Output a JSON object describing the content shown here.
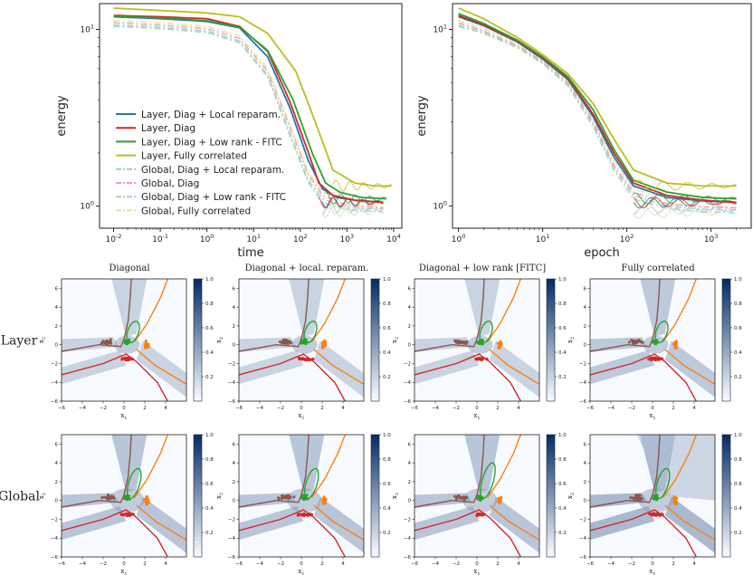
{
  "chart_data": [
    {
      "type": "line",
      "name": "energy-vs-time",
      "xlabel": "time",
      "ylabel": "energy",
      "xscale": "log",
      "yscale": "log",
      "xlim": [
        0.005,
        15000
      ],
      "ylim": [
        0.75,
        14
      ],
      "xticks": [
        {
          "v": 0.01,
          "base": "10",
          "exp": "-2"
        },
        {
          "v": 0.1,
          "base": "10",
          "exp": "-1"
        },
        {
          "v": 1,
          "base": "10",
          "exp": "0"
        },
        {
          "v": 10,
          "base": "10",
          "exp": "1"
        },
        {
          "v": 100,
          "base": "10",
          "exp": "2"
        },
        {
          "v": 1000,
          "base": "10",
          "exp": "3"
        },
        {
          "v": 10000,
          "base": "10",
          "exp": "4"
        }
      ],
      "yticks": [
        {
          "v": 1,
          "base": "10",
          "exp": "0"
        },
        {
          "v": 10,
          "base": "10",
          "exp": "1"
        }
      ],
      "legend": {
        "position": "lower-left",
        "entries": [
          {
            "label": "Layer, Diag + Local reparam.",
            "color": "#1f77b4",
            "style": "solid"
          },
          {
            "label": "Layer, Diag",
            "color": "#d62728",
            "style": "solid"
          },
          {
            "label": "Layer, Diag + Low rank - FITC",
            "color": "#2ca02c",
            "style": "solid"
          },
          {
            "label": "Layer, Fully correlated",
            "color": "#bcbd22",
            "style": "solid"
          },
          {
            "label": "Global, Diag + Local reparam.",
            "color": "#9ec9e2",
            "style": "dashdot"
          },
          {
            "label": "Global, Diag",
            "color": "#eda1a1",
            "style": "dashdot"
          },
          {
            "label": "Global, Diag + Low rank - FITC",
            "color": "#a6d9a6",
            "style": "dashdot"
          },
          {
            "label": "Global, Fully correlated",
            "color": "#e3e39a",
            "style": "dashdot"
          }
        ]
      },
      "series": [
        {
          "name": "Layer, Diag + Local reparam.",
          "x": [
            0.01,
            0.1,
            1,
            5,
            20,
            60,
            150,
            300,
            600,
            1500,
            6000
          ],
          "y": [
            11.8,
            11.5,
            11.1,
            10.2,
            7.0,
            3.6,
            1.8,
            1.25,
            1.12,
            1.08,
            1.05
          ]
        },
        {
          "name": "Layer, Diag",
          "x": [
            0.01,
            0.1,
            1,
            5,
            20,
            60,
            150,
            250,
            500,
            1500,
            6000
          ],
          "y": [
            12.0,
            11.8,
            11.5,
            10.4,
            7.5,
            3.9,
            2.0,
            1.35,
            1.15,
            1.08,
            1.05
          ]
        },
        {
          "name": "Layer, Diag + Low rank - FITC",
          "x": [
            0.01,
            0.1,
            1,
            5,
            20,
            70,
            180,
            350,
            700,
            2000,
            7000
          ],
          "y": [
            11.9,
            11.6,
            11.2,
            10.3,
            7.6,
            4.0,
            2.0,
            1.35,
            1.2,
            1.12,
            1.1
          ]
        },
        {
          "name": "Layer, Fully correlated",
          "x": [
            0.01,
            0.1,
            1,
            5,
            20,
            80,
            200,
            500,
            1500,
            4000,
            9000
          ],
          "y": [
            13.2,
            12.8,
            12.4,
            11.8,
            9.5,
            5.8,
            3.1,
            1.6,
            1.35,
            1.3,
            1.3
          ]
        },
        {
          "name": "Global, Diag + Local reparam.",
          "x": [
            0.01,
            0.1,
            1,
            5,
            20,
            60,
            150,
            300,
            800,
            2000,
            6000
          ],
          "y": [
            10.6,
            10.3,
            9.8,
            8.6,
            5.5,
            2.6,
            1.4,
            1.1,
            1.0,
            0.97,
            0.96
          ]
        },
        {
          "name": "Global, Diag",
          "x": [
            0.01,
            0.1,
            1,
            5,
            20,
            60,
            150,
            300,
            800,
            2000,
            6000
          ],
          "y": [
            10.9,
            10.6,
            10.1,
            8.9,
            5.8,
            2.8,
            1.5,
            1.15,
            1.03,
            1.0,
            0.98
          ]
        },
        {
          "name": "Global, Diag + Low rank - FITC",
          "x": [
            0.01,
            0.1,
            1,
            5,
            20,
            60,
            150,
            300,
            800,
            2000,
            6000
          ],
          "y": [
            10.4,
            10.1,
            9.6,
            8.4,
            5.4,
            2.5,
            1.35,
            1.05,
            0.97,
            0.94,
            0.93
          ]
        },
        {
          "name": "Global, Fully correlated",
          "x": [
            0.01,
            0.1,
            1,
            5,
            20,
            60,
            150,
            300,
            800,
            2000,
            6000
          ],
          "y": [
            11.2,
            10.9,
            10.4,
            9.2,
            6.0,
            2.9,
            1.55,
            1.2,
            1.1,
            1.05,
            1.03
          ]
        }
      ]
    },
    {
      "type": "line",
      "name": "energy-vs-epoch",
      "xlabel": "epoch",
      "ylabel": "energy",
      "xscale": "log",
      "yscale": "log",
      "xlim": [
        0.85,
        3000
      ],
      "ylim": [
        0.75,
        14
      ],
      "xticks": [
        {
          "v": 1,
          "base": "10",
          "exp": "0"
        },
        {
          "v": 10,
          "base": "10",
          "exp": "1"
        },
        {
          "v": 100,
          "base": "10",
          "exp": "2"
        },
        {
          "v": 1000,
          "base": "10",
          "exp": "3"
        }
      ],
      "yticks": [
        {
          "v": 1,
          "base": "10",
          "exp": "0"
        },
        {
          "v": 10,
          "base": "10",
          "exp": "1"
        }
      ],
      "series": [
        {
          "name": "Layer, Diag + Local reparam.",
          "x": [
            1,
            2,
            5,
            10,
            20,
            40,
            70,
            120,
            300,
            800,
            2000
          ],
          "y": [
            11.8,
            10.5,
            8.5,
            6.8,
            5.2,
            3.2,
            1.9,
            1.3,
            1.12,
            1.07,
            1.05
          ]
        },
        {
          "name": "Layer, Diag",
          "x": [
            1,
            2,
            5,
            10,
            20,
            40,
            70,
            120,
            300,
            800,
            2000
          ],
          "y": [
            12.0,
            10.6,
            8.6,
            6.9,
            5.3,
            3.3,
            2.0,
            1.35,
            1.15,
            1.08,
            1.05
          ]
        },
        {
          "name": "Layer, Diag + Low rank - FITC",
          "x": [
            1,
            2,
            5,
            10,
            20,
            40,
            70,
            120,
            300,
            800,
            2000
          ],
          "y": [
            12.3,
            10.8,
            8.7,
            7.0,
            5.4,
            3.5,
            2.1,
            1.4,
            1.2,
            1.12,
            1.1
          ]
        },
        {
          "name": "Layer, Fully correlated",
          "x": [
            1,
            2,
            5,
            10,
            20,
            40,
            70,
            120,
            300,
            800,
            2000
          ],
          "y": [
            13.2,
            11.5,
            9.0,
            7.2,
            5.6,
            3.8,
            2.4,
            1.6,
            1.35,
            1.3,
            1.3
          ]
        },
        {
          "name": "Global, Diag + Local reparam.",
          "x": [
            1,
            2,
            5,
            10,
            20,
            40,
            70,
            120,
            300,
            800,
            2000
          ],
          "y": [
            10.6,
            9.6,
            8.0,
            6.5,
            4.9,
            2.9,
            1.65,
            1.15,
            1.0,
            0.96,
            0.95
          ]
        },
        {
          "name": "Global, Diag",
          "x": [
            1,
            2,
            5,
            10,
            20,
            40,
            70,
            120,
            300,
            800,
            2000
          ],
          "y": [
            10.9,
            9.8,
            8.1,
            6.6,
            5.0,
            3.0,
            1.7,
            1.2,
            1.03,
            0.99,
            0.98
          ]
        },
        {
          "name": "Global, Diag + Low rank - FITC",
          "x": [
            1,
            2,
            5,
            10,
            20,
            40,
            70,
            120,
            300,
            800,
            2000
          ],
          "y": [
            10.4,
            9.5,
            7.9,
            6.4,
            4.8,
            2.8,
            1.6,
            1.1,
            0.97,
            0.93,
            0.92
          ]
        },
        {
          "name": "Global, Fully correlated",
          "x": [
            1,
            2,
            5,
            10,
            20,
            40,
            70,
            120,
            300,
            800,
            2000
          ],
          "y": [
            11.2,
            10.1,
            8.3,
            6.7,
            5.1,
            3.1,
            1.8,
            1.25,
            1.1,
            1.05,
            1.03
          ]
        }
      ]
    },
    {
      "type": "heatmap",
      "name": "decision-boundary-grid",
      "rows": [
        "Layer",
        "Global"
      ],
      "columns": [
        "Diagonal",
        "Diagonal + local. reparam.",
        "Diagonal + low rank [FITC]",
        "Fully correlated"
      ],
      "xlabel_base": "x",
      "xlabel_sub": "1",
      "ylabel_base": "x",
      "ylabel_sub": "2",
      "xlim": [
        -6,
        6
      ],
      "ylim": [
        -6,
        7
      ],
      "xticks": [
        "−6",
        "−4",
        "−2",
        "0",
        "2",
        "4"
      ],
      "xtick_values": [
        -6,
        -4,
        -2,
        0,
        2,
        4
      ],
      "yticks": [
        "−6",
        "−4",
        "−2",
        "0",
        "2",
        "4",
        "6"
      ],
      "ytick_values": [
        -6,
        -4,
        -2,
        0,
        2,
        4,
        6
      ],
      "colorbar": {
        "range": [
          0,
          1
        ],
        "ticks": [
          "0.2",
          "0.4",
          "0.6",
          "0.8",
          "1.0"
        ],
        "tick_values": [
          0.2,
          0.4,
          0.6,
          0.8,
          1.0
        ],
        "colormap": "Blues"
      },
      "class_colors": {
        "brown": "#8c564b",
        "green": "#2ca02c",
        "orange": "#ff7f0e",
        "red": "#d62728"
      },
      "clusters": [
        {
          "name": "brown",
          "center": [
            -1.5,
            0.3
          ],
          "spread": [
            0.9,
            0.35
          ]
        },
        {
          "name": "green",
          "center": [
            0.3,
            0.3
          ],
          "spread": [
            0.4,
            0.4
          ]
        },
        {
          "name": "orange",
          "center": [
            2.2,
            0.0
          ],
          "spread": [
            0.25,
            0.6
          ]
        },
        {
          "name": "red",
          "center": [
            0.4,
            -1.5
          ],
          "spread": [
            1.0,
            0.2
          ]
        }
      ]
    }
  ]
}
